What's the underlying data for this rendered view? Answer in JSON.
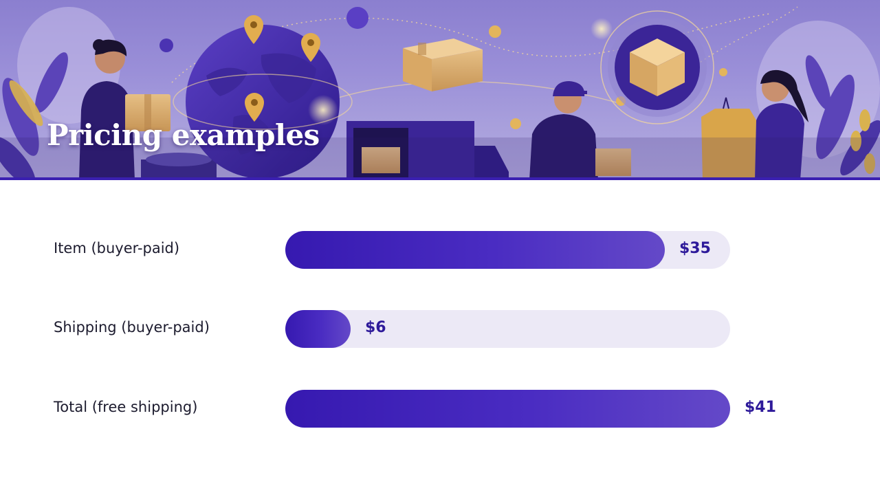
{
  "title": "Pricing examples",
  "colors": {
    "bar_start": "#3619b0",
    "bar_end": "#6449c8",
    "track": "#ece9f6",
    "value_text": "#2e1a9a",
    "accent_rule": "#3a1fb0"
  },
  "banner": {
    "description_icons": [
      "person-with-box-icon",
      "globe-icon",
      "map-pin-icon",
      "cardboard-box-icon",
      "delivery-truck-icon",
      "courier-icon",
      "box-badge-icon",
      "person-with-shirt-icon",
      "leaf-icon"
    ]
  },
  "chart_data": {
    "type": "bar",
    "orientation": "horizontal",
    "categories": [
      "Item (buyer-paid)",
      "Shipping (buyer-paid)",
      "Total (free shipping)"
    ],
    "values": [
      35,
      6,
      41
    ],
    "value_labels": [
      "$35",
      "$6",
      "$41"
    ],
    "xlim": [
      0,
      41
    ],
    "grid": false,
    "legend": "none"
  }
}
